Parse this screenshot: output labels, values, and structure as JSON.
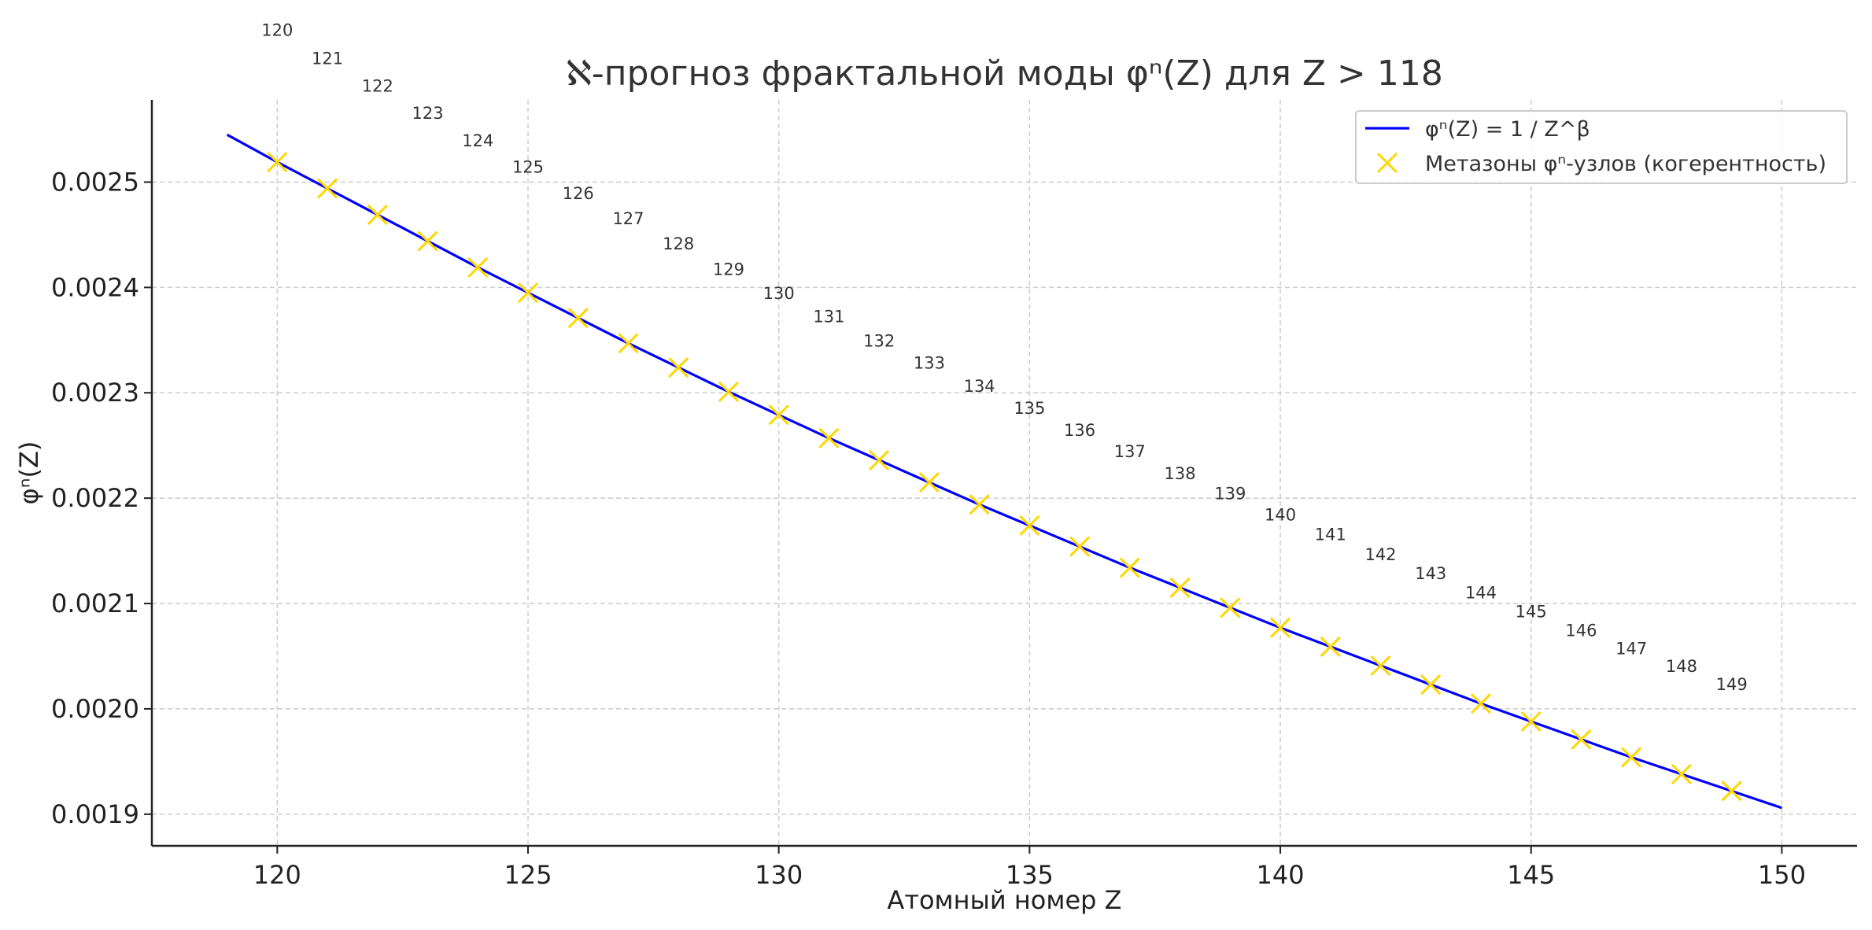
{
  "chart_data": {
    "type": "line",
    "title": "ℵ-прогноз фрактальной моды φⁿ(Z) для Z > 118",
    "xlabel": "Атомный номер Z",
    "ylabel": "φⁿ(Z)",
    "xlim": [
      117.5,
      151.5
    ],
    "ylim": [
      0.00187,
      0.002578
    ],
    "xticks": [
      120,
      125,
      130,
      135,
      140,
      145,
      150
    ],
    "xtick_labels": [
      "120",
      "125",
      "130",
      "135",
      "140",
      "145",
      "150"
    ],
    "yticks": [
      0.0019,
      0.002,
      0.0021,
      0.0022,
      0.0023,
      0.0024,
      0.0025
    ],
    "ytick_labels": [
      "0.0019",
      "0.0020",
      "0.0021",
      "0.0022",
      "0.0023",
      "0.0024",
      "0.0025"
    ],
    "grid": true,
    "legend_position": "top-right",
    "series": [
      {
        "name": "φⁿ(Z) = 1 / Z^β",
        "kind": "line",
        "color": "#0000ff",
        "x": [
          119,
          120,
          121,
          122,
          123,
          124,
          125,
          126,
          127,
          128,
          129,
          130,
          131,
          132,
          133,
          134,
          135,
          136,
          137,
          138,
          139,
          140,
          141,
          142,
          143,
          144,
          145,
          146,
          147,
          148,
          149,
          150
        ],
        "y": [
          0.002545,
          0.002519,
          0.002494,
          0.002469,
          0.002444,
          0.002419,
          0.002395,
          0.002371,
          0.002347,
          0.002324,
          0.002301,
          0.002279,
          0.002257,
          0.002236,
          0.002215,
          0.002194,
          0.002174,
          0.002154,
          0.002134,
          0.002115,
          0.002096,
          0.002077,
          0.002059,
          0.002041,
          0.002023,
          0.002005,
          0.001988,
          0.001971,
          0.001954,
          0.001938,
          0.001922,
          0.001906
        ]
      },
      {
        "name": "Метазоны φⁿ-узлов (когерентность)",
        "kind": "scatter",
        "marker": "x",
        "color": "#ffd700",
        "x": [
          120,
          121,
          122,
          123,
          124,
          125,
          126,
          127,
          128,
          129,
          130,
          131,
          132,
          133,
          134,
          135,
          136,
          137,
          138,
          139,
          140,
          141,
          142,
          143,
          144,
          145,
          146,
          147,
          148,
          149
        ],
        "y": [
          0.002519,
          0.002494,
          0.002469,
          0.002444,
          0.002419,
          0.002395,
          0.002371,
          0.002347,
          0.002324,
          0.002301,
          0.002279,
          0.002257,
          0.002236,
          0.002215,
          0.002194,
          0.002174,
          0.002154,
          0.002134,
          0.002115,
          0.002096,
          0.002077,
          0.002059,
          0.002041,
          0.002023,
          0.002005,
          0.001988,
          0.001971,
          0.001954,
          0.001938,
          0.001922
        ]
      }
    ],
    "annotations": [
      {
        "text": "120",
        "x": 120,
        "y": 0.002639
      },
      {
        "text": "121",
        "x": 121,
        "y": 0.002612
      },
      {
        "text": "122",
        "x": 122,
        "y": 0.002586
      },
      {
        "text": "123",
        "x": 123,
        "y": 0.00256
      },
      {
        "text": "124",
        "x": 124,
        "y": 0.002534
      },
      {
        "text": "125",
        "x": 125,
        "y": 0.002509
      },
      {
        "text": "126",
        "x": 126,
        "y": 0.002484
      },
      {
        "text": "127",
        "x": 127,
        "y": 0.00246
      },
      {
        "text": "128",
        "x": 128,
        "y": 0.002436
      },
      {
        "text": "129",
        "x": 129,
        "y": 0.002412
      },
      {
        "text": "130",
        "x": 130,
        "y": 0.002389
      },
      {
        "text": "131",
        "x": 131,
        "y": 0.002367
      },
      {
        "text": "132",
        "x": 132,
        "y": 0.002344
      },
      {
        "text": "133",
        "x": 133,
        "y": 0.002323
      },
      {
        "text": "134",
        "x": 134,
        "y": 0.002301
      },
      {
        "text": "135",
        "x": 135,
        "y": 0.00228
      },
      {
        "text": "136",
        "x": 136,
        "y": 0.002259
      },
      {
        "text": "137",
        "x": 137,
        "y": 0.002239
      },
      {
        "text": "138",
        "x": 138,
        "y": 0.002218
      },
      {
        "text": "139",
        "x": 139,
        "y": 0.002199
      },
      {
        "text": "140",
        "x": 140,
        "y": 0.002179
      },
      {
        "text": "141",
        "x": 141,
        "y": 0.00216
      },
      {
        "text": "142",
        "x": 142,
        "y": 0.002141
      },
      {
        "text": "143",
        "x": 143,
        "y": 0.002123
      },
      {
        "text": "144",
        "x": 144,
        "y": 0.002105
      },
      {
        "text": "145",
        "x": 145,
        "y": 0.002087
      },
      {
        "text": "146",
        "x": 146,
        "y": 0.002069
      },
      {
        "text": "147",
        "x": 147,
        "y": 0.002052
      },
      {
        "text": "148",
        "x": 148,
        "y": 0.002035
      },
      {
        "text": "149",
        "x": 149,
        "y": 0.002018
      }
    ]
  }
}
